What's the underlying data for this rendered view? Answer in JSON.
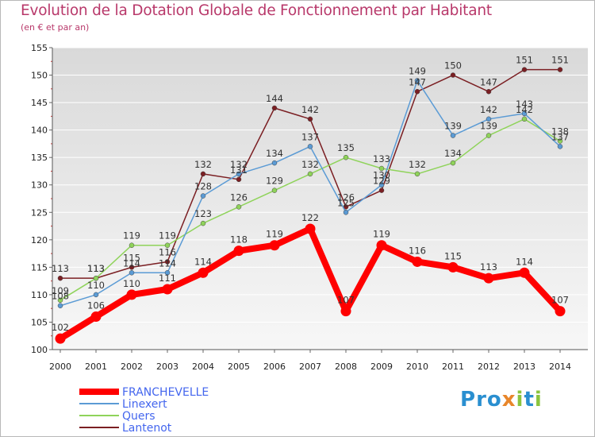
{
  "title": "Evolution de la Dotation Globale de Fonctionnement par Habitant",
  "subtitle": "(en € et par an)",
  "logo": {
    "text": "Proxiti",
    "colors": [
      "#2a8fd0",
      "#e8862a",
      "#8bc43f"
    ]
  },
  "chart_data": {
    "type": "line",
    "x": [
      "2000",
      "2001",
      "2002",
      "2003",
      "2004",
      "2005",
      "2006",
      "2007",
      "2008",
      "2009",
      "2010",
      "2011",
      "2012",
      "2013",
      "2014"
    ],
    "ylim": [
      100,
      155
    ],
    "yticks": [
      100,
      105,
      110,
      115,
      120,
      125,
      130,
      135,
      140,
      145,
      150,
      155
    ],
    "grid": "horizontal",
    "legend_position": "bottom-left",
    "series": [
      {
        "name": "FRANCHEVELLE",
        "color": "#ff0000",
        "values": [
          102,
          106,
          110,
          111,
          114,
          118,
          119,
          122,
          107,
          119,
          116,
          115,
          113,
          114,
          107
        ]
      },
      {
        "name": "Linexert",
        "color": "#5b9bd5",
        "values": [
          108,
          110,
          114,
          114,
          128,
          132,
          134,
          137,
          125,
          130,
          149,
          139,
          142,
          143,
          137
        ]
      },
      {
        "name": "Quers",
        "color": "#8fd35a",
        "values": [
          109,
          113,
          119,
          119,
          123,
          126,
          129,
          132,
          135,
          133,
          132,
          134,
          139,
          142,
          138
        ]
      },
      {
        "name": "Lantenot",
        "color": "#7b1f23",
        "values": [
          113,
          113,
          115,
          116,
          132,
          131,
          144,
          142,
          126,
          129,
          147,
          150,
          147,
          151,
          151
        ]
      }
    ]
  }
}
